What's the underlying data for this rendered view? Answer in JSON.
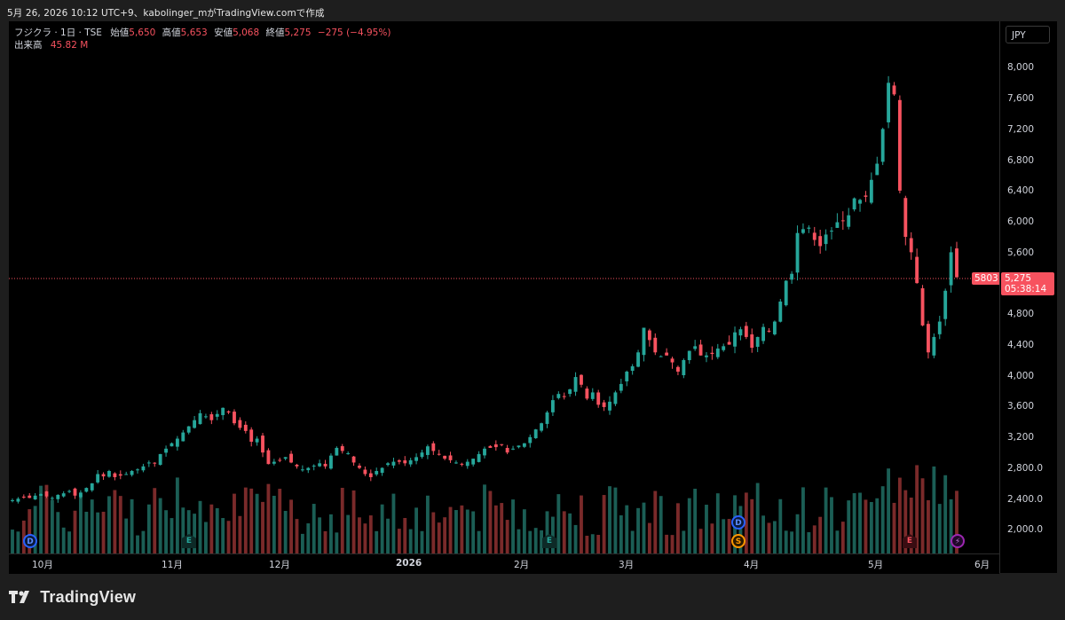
{
  "caption": "5月 26, 2026 10:12 UTC+9、kabolinger_mがTradingView.comで作成",
  "legend": {
    "symbol": "フジクラ · 1日 · TSE",
    "open_label": "始値",
    "open": "5,650",
    "high_label": "高値",
    "high": "5,653",
    "low_label": "安値",
    "low": "5,068",
    "close_label": "終値",
    "close": "5,275",
    "change": "−275 (−4.95%)",
    "volume_label": "出来高",
    "volume": "45.82 M"
  },
  "currency": "JPY",
  "price_axis": {
    "labels": [
      "8,000",
      "7,600",
      "7,200",
      "6,800",
      "6,400",
      "6,000",
      "5,600",
      "4,800",
      "4,400",
      "4,000",
      "3,600",
      "3,200",
      "2,800.0",
      "2,400.0",
      "2,000.0"
    ]
  },
  "price_badge": {
    "price": "5,275",
    "countdown": "05:38:14"
  },
  "last_value_tag": "5803",
  "time_axis": {
    "labels": [
      "10月",
      "11月",
      "12月",
      "2026",
      "2月",
      "3月",
      "4月",
      "5月",
      "6月"
    ]
  },
  "events": {
    "dividend": "D",
    "earnings": "E",
    "split": "S",
    "flash": "⚡"
  },
  "brand": "TradingView",
  "colors": {
    "up": "#26a69a",
    "down": "#f7525f",
    "vol_up": "#1b5e55",
    "vol_down": "#7a2a2a",
    "grid": "#000000",
    "price_line": "#f7525f"
  },
  "chart_data": {
    "type": "candlestick",
    "symbol": "フジクラ",
    "interval": "1日",
    "exchange": "TSE",
    "currency": "JPY",
    "ylim": [
      1800,
      8200
    ],
    "x_range": [
      "2025-09-22",
      "2026-06-04"
    ],
    "last": {
      "open": 5650,
      "high": 5653,
      "low": 5068,
      "close": 5275,
      "change": -275,
      "change_pct": -4.95,
      "volume": "45.82 M"
    },
    "closes_approx": [
      2380,
      2400,
      2420,
      2410,
      2440,
      2460,
      2430,
      2410,
      2450,
      2470,
      2500,
      2440,
      2480,
      2540,
      2600,
      2720,
      2690,
      2760,
      2680,
      2700,
      2720,
      2760,
      2780,
      2820,
      2870,
      2860,
      2980,
      3050,
      3120,
      3180,
      3260,
      3340,
      3420,
      3510,
      3470,
      3420,
      3500,
      3580,
      3520,
      3380,
      3320,
      3280,
      3140,
      3180,
      3000,
      2850,
      2880,
      2900,
      2940,
      2870,
      2820,
      2780,
      2800,
      2830,
      2860,
      2820,
      2960,
      3060,
      3020,
      2990,
      2870,
      2800,
      2720,
      2680,
      2760,
      2800,
      2860,
      2880,
      2880,
      2860,
      2900,
      2940,
      3000,
      3080,
      3020,
      2980,
      2920,
      2900,
      2870,
      2850,
      2880,
      2920,
      2980,
      3050,
      3060,
      3070,
      3100,
      3000,
      3050,
      3090,
      3120,
      3200,
      3300,
      3380,
      3520,
      3680,
      3760,
      3720,
      3820,
      3980,
      3880,
      3700,
      3780,
      3620,
      3590,
      3660,
      3780,
      3890,
      4050,
      4120,
      4300,
      4620,
      4460,
      4300,
      4250,
      4260,
      4170,
      4050,
      4200,
      4320,
      4380,
      4260,
      4260,
      4280,
      4350,
      4380,
      4400,
      4560,
      4600,
      4500,
      4360,
      4500,
      4630,
      4580,
      4700,
      4960,
      5230,
      5320,
      5850,
      5900,
      5920,
      5760,
      5680,
      5830,
      5880,
      5990,
      6010,
      6080,
      6300,
      6280,
      6320,
      6540,
      6750,
      7200,
      7800,
      7650,
      6400,
      5800,
      5600,
      5200,
      4650,
      4300,
      4500,
      4700,
      5100,
      5600,
      5275
    ],
    "volume_note": "volume bars shown below candles"
  }
}
